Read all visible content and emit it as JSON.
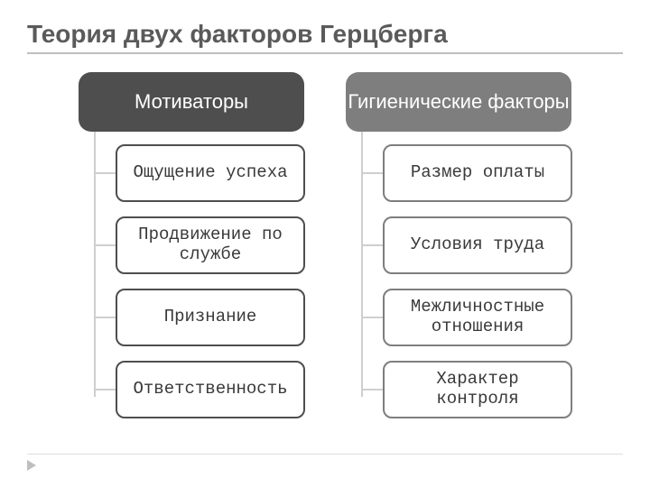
{
  "slide": {
    "title": "Теория двух факторов Герцберга",
    "title_color": "#5a5a5a",
    "rule_color": "#bfbfbf",
    "background": "#ffffff"
  },
  "diagram": {
    "type": "tree",
    "stem_color": "#cfcfcf",
    "columns": [
      {
        "header": {
          "label": "Мотиваторы",
          "bg": "#4e4e4e",
          "fg": "#ffffff",
          "fontsize": 22,
          "radius": 14
        },
        "item_border": "#4e4e4e",
        "item_fg": "#3a3a3a",
        "items": [
          {
            "label": "Ощущение успеха"
          },
          {
            "label": "Продвижение по службе"
          },
          {
            "label": "Признание"
          },
          {
            "label": "Ответственность"
          }
        ]
      },
      {
        "header": {
          "label": "Гигиенические факторы",
          "bg": "#7e7e7e",
          "fg": "#ffffff",
          "fontsize": 22,
          "radius": 14
        },
        "item_border": "#7e7e7e",
        "item_fg": "#3a3a3a",
        "items": [
          {
            "label": "Размер оплаты"
          },
          {
            "label": "Условия труда"
          },
          {
            "label": "Межличностные отношения"
          },
          {
            "label": "Характер контроля"
          }
        ]
      }
    ]
  }
}
